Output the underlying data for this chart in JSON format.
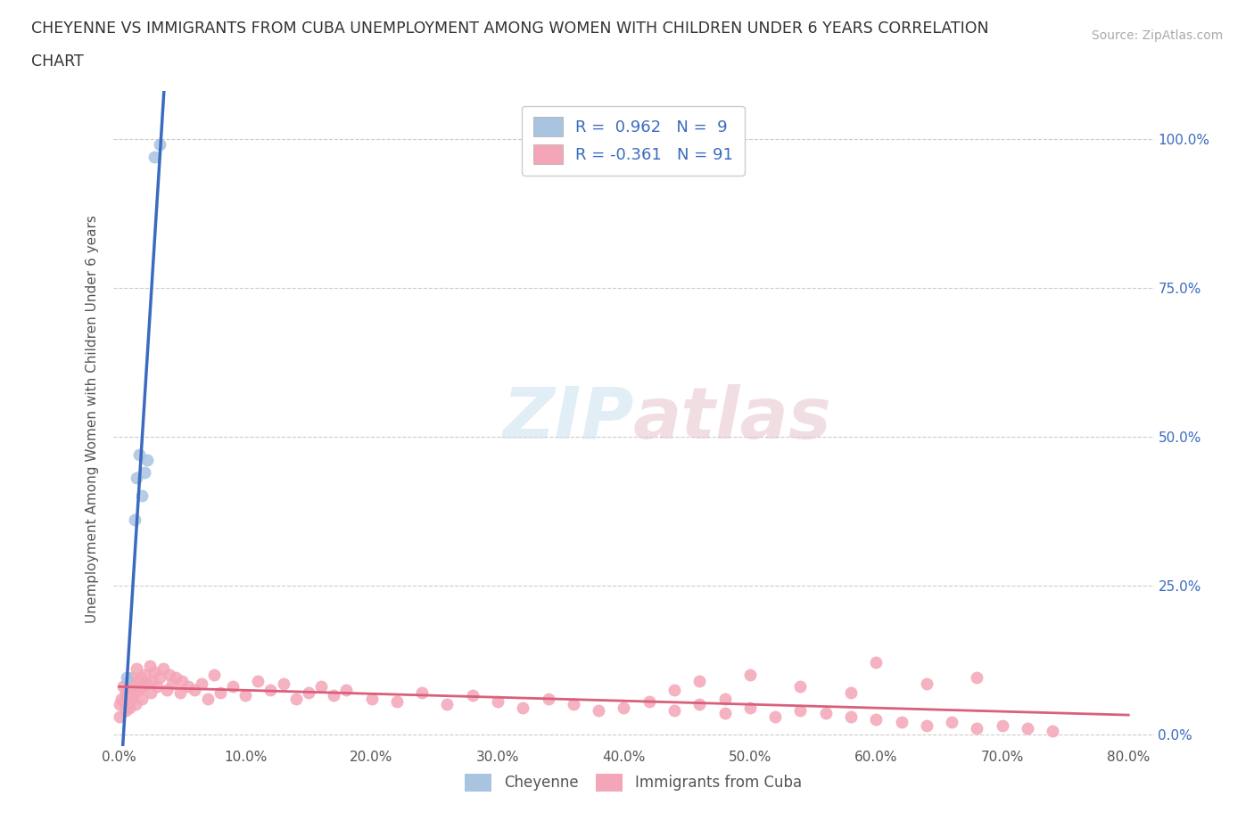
{
  "title_line1": "CHEYENNE VS IMMIGRANTS FROM CUBA UNEMPLOYMENT AMONG WOMEN WITH CHILDREN UNDER 6 YEARS CORRELATION",
  "title_line2": "CHART",
  "source": "Source: ZipAtlas.com",
  "ylabel": "Unemployment Among Women with Children Under 6 years",
  "xlim": [
    -0.005,
    0.82
  ],
  "ylim": [
    -0.02,
    1.08
  ],
  "xticks": [
    0.0,
    0.1,
    0.2,
    0.3,
    0.4,
    0.5,
    0.6,
    0.7,
    0.8
  ],
  "xticklabels": [
    "0.0%",
    "10.0%",
    "20.0%",
    "30.0%",
    "40.0%",
    "50.0%",
    "60.0%",
    "70.0%",
    "80.0%"
  ],
  "yticks": [
    0.0,
    0.25,
    0.5,
    0.75,
    1.0
  ],
  "right_yticklabels": [
    "0.0%",
    "25.0%",
    "50.0%",
    "75.0%",
    "100.0%"
  ],
  "cheyenne_color": "#a8c4e0",
  "cheyenne_line_color": "#3a6bbf",
  "cuba_color": "#f4a6b8",
  "cuba_line_color": "#d95f7a",
  "R_cheyenne": 0.962,
  "N_cheyenne": 9,
  "R_cuba": -0.361,
  "N_cuba": 91,
  "watermark": "ZIPatlas",
  "background_color": "#ffffff",
  "grid_color": "#cccccc",
  "cheyenne_x": [
    0.006,
    0.012,
    0.014,
    0.016,
    0.018,
    0.02,
    0.022,
    0.028,
    0.032
  ],
  "cheyenne_y": [
    0.095,
    0.36,
    0.43,
    0.47,
    0.4,
    0.44,
    0.46,
    0.97,
    0.99
  ],
  "cuba_x": [
    0.0,
    0.0,
    0.002,
    0.003,
    0.004,
    0.005,
    0.005,
    0.006,
    0.007,
    0.008,
    0.008,
    0.009,
    0.01,
    0.01,
    0.011,
    0.012,
    0.013,
    0.014,
    0.015,
    0.016,
    0.017,
    0.018,
    0.019,
    0.02,
    0.022,
    0.024,
    0.025,
    0.026,
    0.028,
    0.03,
    0.032,
    0.035,
    0.038,
    0.04,
    0.042,
    0.045,
    0.048,
    0.05,
    0.055,
    0.06,
    0.065,
    0.07,
    0.075,
    0.08,
    0.09,
    0.1,
    0.11,
    0.12,
    0.13,
    0.14,
    0.15,
    0.16,
    0.17,
    0.18,
    0.2,
    0.22,
    0.24,
    0.26,
    0.28,
    0.3,
    0.32,
    0.34,
    0.36,
    0.38,
    0.4,
    0.42,
    0.44,
    0.46,
    0.48,
    0.5,
    0.52,
    0.54,
    0.56,
    0.58,
    0.6,
    0.62,
    0.64,
    0.66,
    0.68,
    0.7,
    0.72,
    0.74,
    0.6,
    0.64,
    0.68,
    0.5,
    0.54,
    0.58,
    0.46,
    0.48,
    0.44
  ],
  "cuba_y": [
    0.05,
    0.03,
    0.06,
    0.08,
    0.055,
    0.07,
    0.04,
    0.065,
    0.09,
    0.075,
    0.045,
    0.085,
    0.095,
    0.06,
    0.08,
    0.07,
    0.05,
    0.11,
    0.09,
    0.075,
    0.095,
    0.06,
    0.08,
    0.1,
    0.085,
    0.115,
    0.07,
    0.09,
    0.105,
    0.08,
    0.095,
    0.11,
    0.075,
    0.1,
    0.085,
    0.095,
    0.07,
    0.09,
    0.08,
    0.075,
    0.085,
    0.06,
    0.1,
    0.07,
    0.08,
    0.065,
    0.09,
    0.075,
    0.085,
    0.06,
    0.07,
    0.08,
    0.065,
    0.075,
    0.06,
    0.055,
    0.07,
    0.05,
    0.065,
    0.055,
    0.045,
    0.06,
    0.05,
    0.04,
    0.045,
    0.055,
    0.04,
    0.05,
    0.035,
    0.045,
    0.03,
    0.04,
    0.035,
    0.03,
    0.025,
    0.02,
    0.015,
    0.02,
    0.01,
    0.015,
    0.01,
    0.005,
    0.12,
    0.085,
    0.095,
    0.1,
    0.08,
    0.07,
    0.09,
    0.06,
    0.075
  ]
}
